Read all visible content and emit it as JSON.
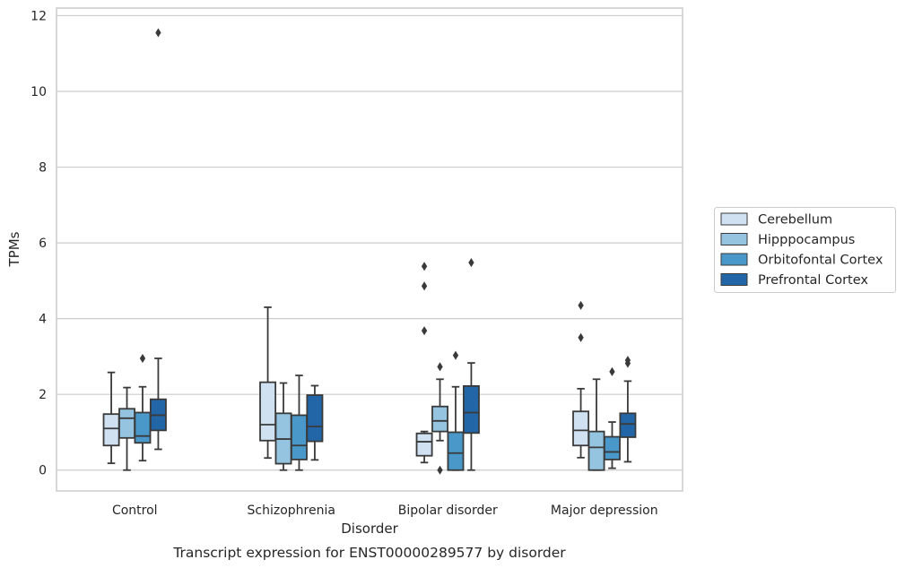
{
  "chart_data": {
    "type": "box",
    "caption": "Transcript expression for ENST00000289577 by disorder",
    "xlabel": "Disorder",
    "ylabel": "TPMs",
    "ylim": [
      -0.55,
      12.2
    ],
    "yticks": [
      0,
      2,
      4,
      6,
      8,
      10,
      12
    ],
    "grid": "horizontal",
    "legend_position": "right",
    "categories": [
      "Control",
      "Schizophrenia",
      "Bipolar disorder",
      "Major depression"
    ],
    "series": [
      {
        "name": "Cerebellum",
        "color": "#d0e1f2",
        "boxes": [
          {
            "whislo": 0.18,
            "q1": 0.65,
            "med": 1.1,
            "q3": 1.48,
            "whishi": 2.58,
            "fliers": []
          },
          {
            "whislo": 0.32,
            "q1": 0.78,
            "med": 1.2,
            "q3": 2.32,
            "whishi": 4.3,
            "fliers": []
          },
          {
            "whislo": 0.2,
            "q1": 0.38,
            "med": 0.75,
            "q3": 0.97,
            "whishi": 1.02,
            "fliers": [
              3.68,
              4.86,
              5.38
            ]
          },
          {
            "whislo": 0.33,
            "q1": 0.65,
            "med": 1.05,
            "q3": 1.55,
            "whishi": 2.15,
            "fliers": [
              3.5,
              4.35
            ]
          }
        ]
      },
      {
        "name": "Hipppocampus",
        "color": "#94c4df",
        "boxes": [
          {
            "whislo": 0.0,
            "q1": 0.85,
            "med": 1.37,
            "q3": 1.62,
            "whishi": 2.18,
            "fliers": []
          },
          {
            "whislo": 0.0,
            "q1": 0.17,
            "med": 0.82,
            "q3": 1.5,
            "whishi": 2.3,
            "fliers": []
          },
          {
            "whislo": 0.78,
            "q1": 1.02,
            "med": 1.3,
            "q3": 1.68,
            "whishi": 2.4,
            "fliers": [
              0.0,
              2.73
            ]
          },
          {
            "whislo": 0.0,
            "q1": 0.0,
            "med": 0.6,
            "q3": 1.02,
            "whishi": 2.4,
            "fliers": []
          }
        ]
      },
      {
        "name": "Orbitofontal Cortex",
        "color": "#4a98c9",
        "boxes": [
          {
            "whislo": 0.25,
            "q1": 0.72,
            "med": 0.9,
            "q3": 1.52,
            "whishi": 2.2,
            "fliers": [
              2.95
            ]
          },
          {
            "whislo": 0.0,
            "q1": 0.28,
            "med": 0.65,
            "q3": 1.45,
            "whishi": 2.5,
            "fliers": []
          },
          {
            "whislo": 0.0,
            "q1": 0.0,
            "med": 0.45,
            "q3": 1.0,
            "whishi": 2.2,
            "fliers": [
              3.03
            ]
          },
          {
            "whislo": 0.05,
            "q1": 0.28,
            "med": 0.48,
            "q3": 0.88,
            "whishi": 1.27,
            "fliers": [
              2.6
            ]
          }
        ]
      },
      {
        "name": "Prefrontal Cortex",
        "color": "#2366a7",
        "boxes": [
          {
            "whislo": 0.55,
            "q1": 1.05,
            "med": 1.45,
            "q3": 1.87,
            "whishi": 2.95,
            "fliers": [
              11.55
            ]
          },
          {
            "whislo": 0.27,
            "q1": 0.76,
            "med": 1.15,
            "q3": 1.98,
            "whishi": 2.23,
            "fliers": []
          },
          {
            "whislo": 0.0,
            "q1": 0.98,
            "med": 1.52,
            "q3": 2.22,
            "whishi": 2.83,
            "fliers": [
              5.48
            ]
          },
          {
            "whislo": 0.22,
            "q1": 0.87,
            "med": 1.22,
            "q3": 1.5,
            "whishi": 2.35,
            "fliers": [
              2.82,
              2.9
            ]
          }
        ]
      }
    ]
  }
}
